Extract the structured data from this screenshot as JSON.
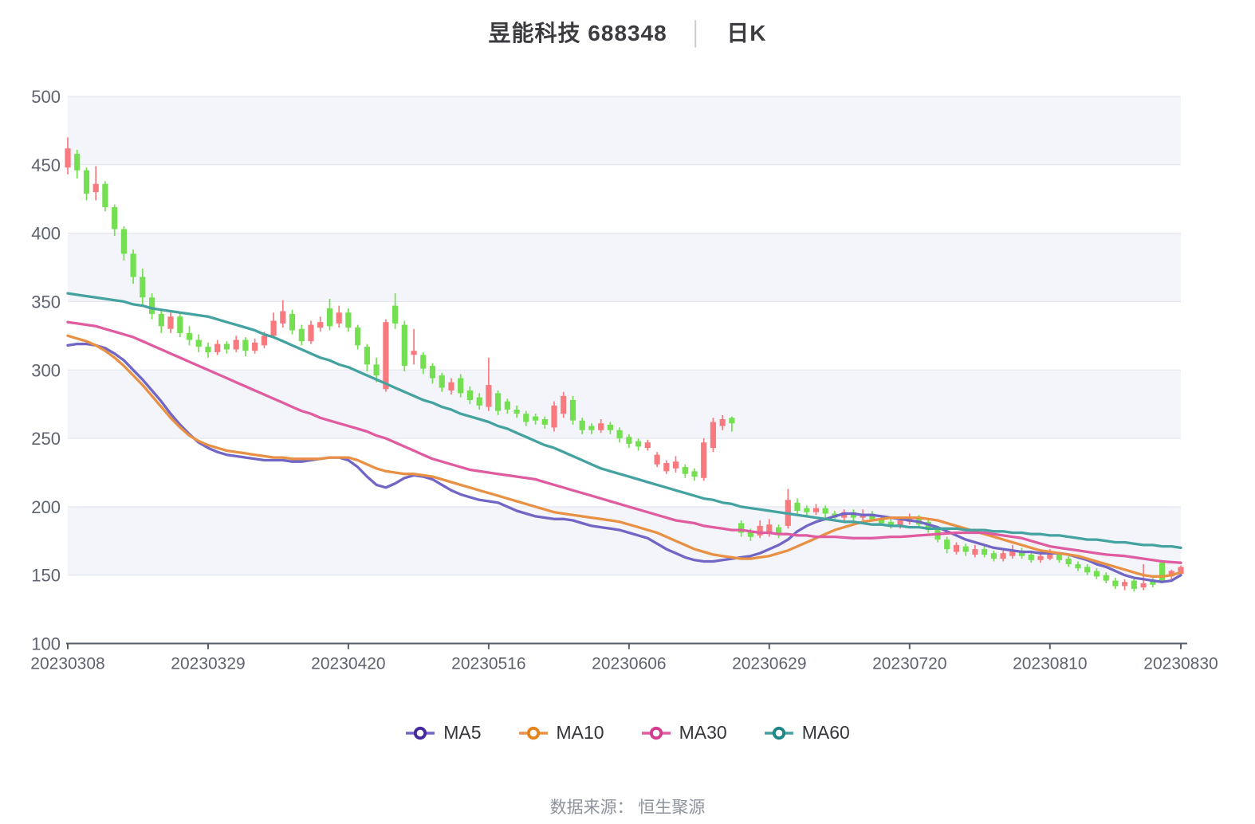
{
  "title": {
    "stock_title": "昱能科技 688348",
    "separator": "│",
    "period": "日K"
  },
  "footer": {
    "text": "数据来源： 恒生聚源"
  },
  "chart_data": {
    "type": "candlestick",
    "title": "昱能科技 688348 日K",
    "x_axis": {
      "tick_labels": [
        "20230308",
        "20230329",
        "20230420",
        "20230516",
        "20230606",
        "20230629",
        "20230720",
        "20230810",
        "20230830"
      ],
      "tick_indices": [
        0,
        15,
        30,
        45,
        60,
        75,
        90,
        105,
        119
      ]
    },
    "y_axis": {
      "ticks": [
        100,
        150,
        200,
        250,
        300,
        350,
        400,
        450,
        500
      ],
      "min": 100,
      "max": 500
    },
    "grid": {
      "split_bands": true,
      "band_order_from_top": [
        "shaded",
        "white",
        "shaded",
        "white",
        "shaded",
        "white",
        "shaded",
        "white"
      ]
    },
    "legend_position": "bottom",
    "colors": {
      "up": "#F8797E",
      "down": "#73DF51",
      "band_fill": "#F4F5FA",
      "grid_line": "#DFE3ED",
      "axis_line": "#575D68",
      "tick_text": "#5E6370"
    },
    "candle_format": [
      "open",
      "close",
      "low",
      "high"
    ],
    "candles": [
      [
        448,
        462,
        443,
        470
      ],
      [
        458,
        446,
        440,
        461
      ],
      [
        446,
        429,
        424,
        448
      ],
      [
        430,
        436,
        424,
        449
      ],
      [
        436,
        419,
        416,
        438
      ],
      [
        419,
        403,
        398,
        421
      ],
      [
        403,
        385,
        380,
        405
      ],
      [
        385,
        368,
        363,
        388
      ],
      [
        368,
        353,
        348,
        374
      ],
      [
        353,
        341,
        337,
        356
      ],
      [
        341,
        332,
        327,
        344
      ],
      [
        330,
        339,
        327,
        342
      ],
      [
        339,
        327,
        324,
        341
      ],
      [
        327,
        322,
        318,
        332
      ],
      [
        322,
        317,
        313,
        326
      ],
      [
        317,
        313,
        309,
        320
      ],
      [
        313,
        319,
        311,
        322
      ],
      [
        319,
        315,
        312,
        321
      ],
      [
        315,
        322,
        313,
        325
      ],
      [
        322,
        314,
        310,
        324
      ],
      [
        314,
        320,
        312,
        323
      ],
      [
        318,
        325,
        316,
        328
      ],
      [
        325,
        336,
        323,
        342
      ],
      [
        334,
        343,
        331,
        351
      ],
      [
        341,
        329,
        326,
        344
      ],
      [
        330,
        321,
        318,
        333
      ],
      [
        321,
        333,
        319,
        336
      ],
      [
        331,
        335,
        328,
        339
      ],
      [
        345,
        332,
        329,
        352
      ],
      [
        334,
        342,
        331,
        347
      ],
      [
        342,
        331,
        328,
        345
      ],
      [
        331,
        318,
        315,
        333
      ],
      [
        317,
        304,
        299,
        319
      ],
      [
        304,
        296,
        291,
        309
      ],
      [
        286,
        335,
        284,
        337
      ],
      [
        347,
        334,
        330,
        356
      ],
      [
        333,
        303,
        299,
        336
      ],
      [
        311,
        314,
        304,
        330
      ],
      [
        311,
        301,
        297,
        313
      ],
      [
        303,
        294,
        290,
        305
      ],
      [
        296,
        287,
        284,
        298
      ],
      [
        285,
        291,
        282,
        294
      ],
      [
        294,
        283,
        280,
        297
      ],
      [
        285,
        278,
        275,
        288
      ],
      [
        280,
        274,
        271,
        283
      ],
      [
        273,
        289,
        270,
        309
      ],
      [
        283,
        270,
        267,
        285
      ],
      [
        277,
        271,
        268,
        279
      ],
      [
        271,
        268,
        265,
        274
      ],
      [
        268,
        262,
        259,
        270
      ],
      [
        266,
        263,
        260,
        268
      ],
      [
        264,
        260,
        257,
        266
      ],
      [
        258,
        274,
        255,
        277
      ],
      [
        268,
        281,
        265,
        284
      ],
      [
        278,
        263,
        260,
        281
      ],
      [
        263,
        256,
        253,
        265
      ],
      [
        259,
        256,
        253,
        261
      ],
      [
        256,
        261,
        254,
        264
      ],
      [
        260,
        256,
        253,
        262
      ],
      [
        256,
        250,
        247,
        258
      ],
      [
        251,
        246,
        243,
        253
      ],
      [
        248,
        244,
        241,
        250
      ],
      [
        243,
        247,
        241,
        249
      ],
      [
        231,
        238,
        229,
        240
      ],
      [
        226,
        232,
        224,
        234
      ],
      [
        228,
        233,
        225,
        237
      ],
      [
        229,
        224,
        221,
        231
      ],
      [
        226,
        222,
        219,
        228
      ],
      [
        221,
        247,
        219,
        250
      ],
      [
        243,
        262,
        240,
        265
      ],
      [
        259,
        264,
        256,
        267
      ],
      [
        265,
        261,
        255,
        266
      ],
      [
        188,
        181,
        178,
        190
      ],
      [
        182,
        178,
        175,
        184
      ],
      [
        179,
        186,
        177,
        190
      ],
      [
        180,
        187,
        178,
        191
      ],
      [
        185,
        180,
        177,
        187
      ],
      [
        186,
        205,
        184,
        213
      ],
      [
        203,
        197,
        194,
        206
      ],
      [
        199,
        196,
        193,
        201
      ],
      [
        196,
        199,
        194,
        202
      ],
      [
        199,
        195,
        192,
        201
      ],
      [
        195,
        192,
        190,
        197
      ],
      [
        192,
        196,
        190,
        198
      ],
      [
        196,
        192,
        189,
        198
      ],
      [
        192,
        195,
        190,
        198
      ],
      [
        195,
        191,
        189,
        197
      ],
      [
        191,
        188,
        186,
        193
      ],
      [
        189,
        186,
        184,
        191
      ],
      [
        186,
        190,
        184,
        193
      ],
      [
        189,
        192,
        187,
        195
      ],
      [
        192,
        187,
        185,
        194
      ],
      [
        189,
        183,
        181,
        191
      ],
      [
        183,
        176,
        174,
        185
      ],
      [
        176,
        169,
        166,
        178
      ],
      [
        167,
        172,
        165,
        174
      ],
      [
        171,
        167,
        164,
        173
      ],
      [
        165,
        169,
        163,
        172
      ],
      [
        169,
        165,
        163,
        171
      ],
      [
        166,
        162,
        160,
        168
      ],
      [
        162,
        166,
        160,
        168
      ],
      [
        164,
        168,
        162,
        172
      ],
      [
        168,
        164,
        162,
        170
      ],
      [
        165,
        161,
        159,
        167
      ],
      [
        161,
        164,
        159,
        166
      ],
      [
        162,
        166,
        161,
        169
      ],
      [
        165,
        161,
        159,
        167
      ],
      [
        162,
        158,
        156,
        164
      ],
      [
        158,
        155,
        153,
        160
      ],
      [
        156,
        152,
        150,
        158
      ],
      [
        153,
        149,
        147,
        155
      ],
      [
        150,
        146,
        144,
        152
      ],
      [
        146,
        142,
        140,
        148
      ],
      [
        142,
        145,
        139,
        147
      ],
      [
        146,
        140,
        138,
        147
      ],
      [
        141,
        144,
        139,
        158
      ],
      [
        146,
        143,
        141,
        148
      ],
      [
        159,
        146,
        144,
        161
      ],
      [
        149,
        153,
        146,
        154
      ],
      [
        151,
        156,
        149,
        157
      ]
    ],
    "ma_series": [
      {
        "name": "MA5",
        "color": "#7166C6",
        "ring_color": "#46289E",
        "values": [
          318,
          319,
          319,
          318,
          316,
          312,
          307,
          300,
          293,
          285,
          277,
          268,
          260,
          253,
          247,
          243,
          240,
          238,
          237,
          236,
          235,
          234,
          234,
          234,
          233,
          233,
          234,
          235,
          236,
          236,
          234,
          229,
          222,
          216,
          214,
          217,
          221,
          223,
          222,
          220,
          216,
          212,
          209,
          207,
          205,
          204,
          203,
          200,
          197,
          195,
          193,
          192,
          191,
          191,
          190,
          188,
          186,
          185,
          184,
          183,
          181,
          179,
          177,
          173,
          169,
          166,
          163,
          161,
          160,
          160,
          161,
          162,
          163,
          164,
          166,
          169,
          172,
          176,
          182,
          186,
          189,
          191,
          193,
          195,
          195,
          194,
          194,
          193,
          192,
          191,
          190,
          189,
          187,
          185,
          182,
          179,
          176,
          174,
          172,
          170,
          169,
          168,
          167,
          167,
          166,
          166,
          166,
          165,
          163,
          161,
          158,
          156,
          153,
          150,
          148,
          147,
          146,
          145,
          146,
          150
        ]
      },
      {
        "name": "MA10",
        "color": "#E89144",
        "ring_color": "#E2831C",
        "values": [
          325,
          323,
          321,
          318,
          314,
          309,
          303,
          296,
          289,
          281,
          273,
          265,
          258,
          252,
          248,
          245,
          243,
          241,
          240,
          239,
          238,
          237,
          236,
          236,
          235,
          235,
          235,
          235,
          236,
          236,
          236,
          234,
          231,
          228,
          226,
          225,
          224,
          224,
          223,
          222,
          220,
          218,
          216,
          214,
          212,
          210,
          208,
          206,
          204,
          202,
          200,
          198,
          196,
          195,
          194,
          193,
          192,
          191,
          190,
          189,
          187,
          185,
          183,
          181,
          178,
          175,
          172,
          169,
          167,
          165,
          164,
          163,
          162,
          162,
          163,
          164,
          166,
          168,
          171,
          174,
          177,
          180,
          183,
          185,
          187,
          189,
          190,
          191,
          192,
          192,
          192,
          192,
          191,
          190,
          188,
          186,
          184,
          182,
          180,
          178,
          176,
          174,
          172,
          170,
          168,
          167,
          166,
          165,
          164,
          162,
          160,
          158,
          156,
          154,
          152,
          150,
          149,
          149,
          150,
          152
        ]
      },
      {
        "name": "MA30",
        "color": "#DE5C9F",
        "ring_color": "#D23C92",
        "values": [
          335,
          334,
          333,
          332,
          330,
          328,
          326,
          324,
          321,
          318,
          315,
          312,
          309,
          306,
          303,
          300,
          297,
          294,
          291,
          288,
          285,
          282,
          279,
          276,
          273,
          270,
          268,
          265,
          263,
          261,
          259,
          257,
          255,
          252,
          250,
          247,
          244,
          241,
          238,
          235,
          233,
          231,
          229,
          227,
          226,
          225,
          224,
          223,
          222,
          221,
          220,
          218,
          216,
          214,
          212,
          210,
          208,
          206,
          204,
          202,
          200,
          198,
          196,
          194,
          192,
          190,
          189,
          188,
          186,
          185,
          184,
          183,
          183,
          182,
          181,
          181,
          180,
          180,
          179,
          179,
          178,
          178,
          178,
          177.5,
          177,
          177,
          177,
          177.5,
          178,
          178,
          178.5,
          179,
          179.5,
          180,
          180.5,
          181,
          181,
          181,
          181,
          180,
          179,
          178,
          177,
          175,
          173,
          171,
          170,
          169,
          168,
          167,
          166,
          165,
          164.5,
          164,
          163,
          162,
          161,
          160,
          159.5,
          159
        ]
      },
      {
        "name": "MA60",
        "color": "#44A2A0",
        "ring_color": "#1F8585",
        "values": [
          356,
          355,
          354,
          353,
          352,
          351,
          350,
          348,
          347,
          345,
          344,
          343,
          342,
          341,
          340,
          339,
          337,
          335,
          333,
          331,
          329,
          326,
          324,
          321,
          318,
          315,
          312,
          309,
          307,
          304,
          302,
          299,
          296,
          293,
          290,
          287,
          284,
          281,
          278,
          276,
          273,
          271,
          268,
          266,
          264,
          262,
          259,
          257,
          254,
          251,
          248,
          245,
          243,
          240,
          237,
          234,
          231,
          228,
          226,
          224,
          222,
          220,
          218,
          216,
          214,
          212,
          210,
          208,
          206,
          205,
          203,
          202,
          200,
          199,
          198,
          197,
          196,
          195,
          194,
          193,
          192,
          191,
          190,
          189,
          189,
          188,
          187,
          187,
          186,
          186,
          185,
          185,
          184,
          184,
          184,
          184,
          183,
          183,
          183,
          182,
          182,
          181,
          181,
          180,
          180,
          179,
          179,
          178,
          177,
          176,
          176,
          175,
          174,
          174,
          173,
          172,
          172,
          171,
          171,
          170
        ]
      }
    ]
  }
}
